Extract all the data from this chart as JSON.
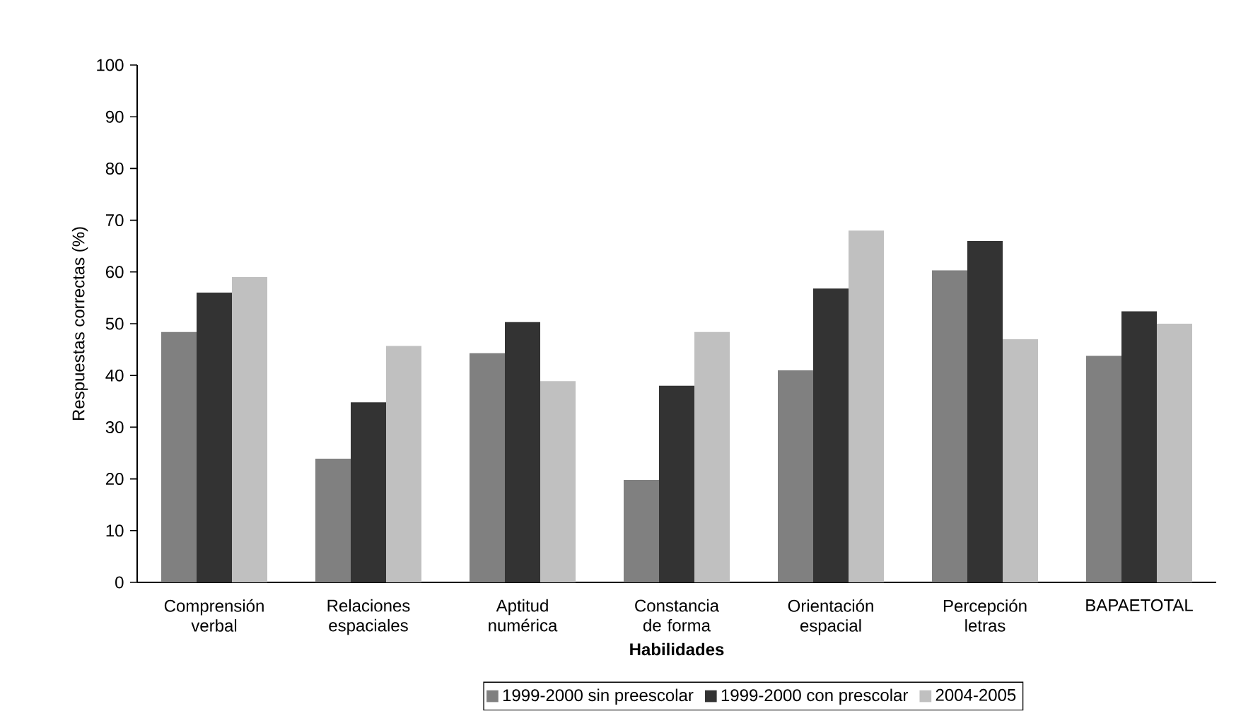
{
  "chart_data": {
    "type": "bar",
    "xlabel": "Habilidades",
    "ylabel": "Respuestas correctas (%)",
    "categories": [
      "Comprensión verbal",
      "Relaciones espaciales",
      "Aptitud numérica",
      "Constancia de forma",
      "Orientación espacial",
      "Percepción letras",
      "BAPAETOTAL"
    ],
    "series": [
      {
        "name": "1999-2000 sin preescolar",
        "color": "#808080",
        "values": [
          48.4,
          23.9,
          44.3,
          19.8,
          41.0,
          60.3,
          43.8
        ]
      },
      {
        "name": "1999-2000 con prescolar",
        "color": "#333333",
        "values": [
          56.0,
          34.8,
          50.3,
          38.0,
          56.8,
          66.0,
          52.4
        ]
      },
      {
        "name": "2004-2005",
        "color": "#c0c0c0",
        "values": [
          59.0,
          45.7,
          38.9,
          48.4,
          68.0,
          47.0,
          50.0
        ]
      }
    ],
    "ylim": [
      0,
      100
    ],
    "yticks": [
      0,
      10,
      20,
      30,
      40,
      50,
      60,
      70,
      80,
      90,
      100
    ],
    "legend": "bottom"
  }
}
